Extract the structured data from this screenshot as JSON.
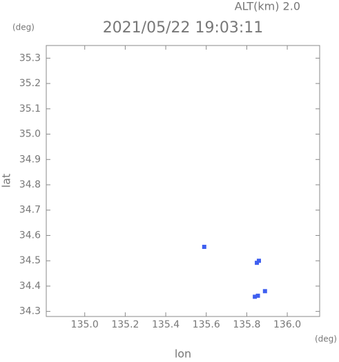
{
  "chart_data": {
    "type": "scatter",
    "title": "2021/05/22 19:03:11",
    "annotation": "ALT(km) 2.0",
    "y_unit": "(deg)",
    "x_unit": "(deg)",
    "xlabel": "lon",
    "ylabel": "lat",
    "color": "#3f5ff0",
    "x": [
      135.59,
      135.85,
      135.86,
      135.84,
      135.855,
      135.89
    ],
    "values": [
      34.555,
      34.492,
      34.5,
      34.358,
      34.362,
      34.38
    ],
    "xlim": [
      134.81,
      136.16
    ],
    "ylim": [
      34.28,
      35.35
    ],
    "xticks": [
      {
        "value": 135,
        "label": "135.0"
      },
      {
        "value": 135.2,
        "label": "135.2"
      },
      {
        "value": 135.4,
        "label": "135.4"
      },
      {
        "value": 135.6,
        "label": "135.6"
      },
      {
        "value": 135.8,
        "label": "135.8"
      },
      {
        "value": 136,
        "label": "136.0"
      }
    ],
    "yticks": [
      34.3,
      34.4,
      34.5,
      34.6,
      34.7,
      34.8,
      34.9,
      {
        "value": 35,
        "label": "35.0"
      },
      35.1,
      35.2,
      35.3
    ]
  }
}
